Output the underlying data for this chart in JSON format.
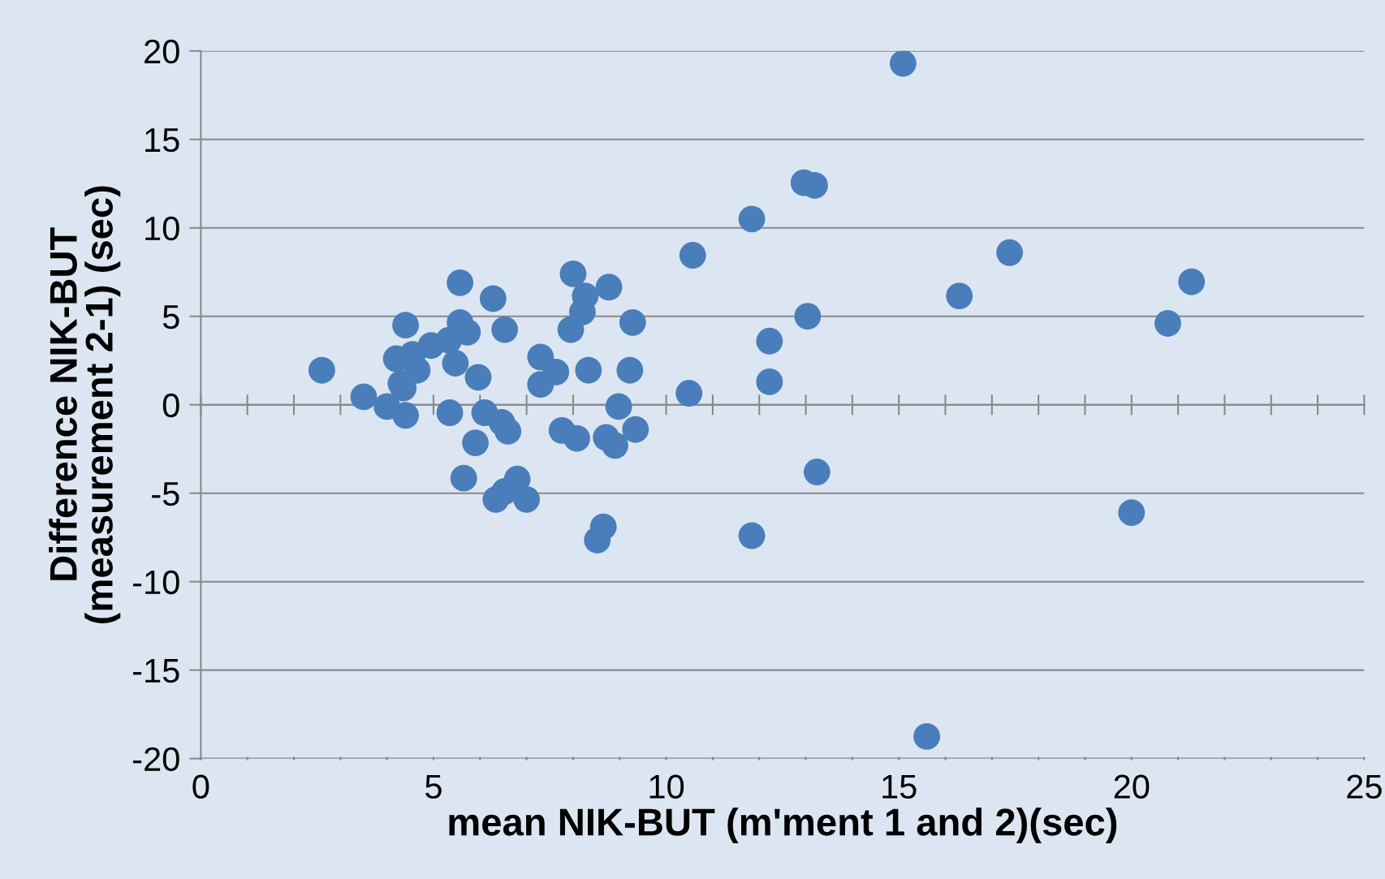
{
  "chart_data": {
    "type": "scatter",
    "xlabel": "mean NIK-BUT (m'ment 1 and 2)(sec)",
    "ylabel": "Difference NIK-BUT\n(measurement 2-1) (sec)",
    "x": [
      2.6,
      3.5,
      4.0,
      4.2,
      4.4,
      4.3,
      4.35,
      4.4,
      4.55,
      4.65,
      4.95,
      5.33,
      5.47,
      5.35,
      5.57,
      5.57,
      5.73,
      5.65,
      5.96,
      5.9,
      6.1,
      6.28,
      6.34,
      6.53,
      6.47,
      6.6,
      6.53,
      6.8,
      7.0,
      7.3,
      7.3,
      7.63,
      7.76,
      7.95,
      8.0,
      8.08,
      8.2,
      8.26,
      8.33,
      8.52,
      8.65,
      8.71,
      8.77,
      8.9,
      8.98,
      9.22,
      9.28,
      9.34,
      10.49,
      10.57,
      11.84,
      11.84,
      12.22,
      12.22,
      12.96,
      13.19,
      13.04,
      13.24,
      15.09,
      15.6,
      16.3,
      17.38,
      20.0,
      20.78,
      21.29
    ],
    "series": [
      {
        "color": "#4a7ebb",
        "values": [
          1.95,
          0.45,
          -0.1,
          2.6,
          4.5,
          1.2,
          0.95,
          -0.6,
          2.85,
          1.95,
          3.35,
          3.65,
          2.35,
          -0.45,
          6.9,
          4.65,
          4.1,
          -4.15,
          1.55,
          -2.15,
          -0.45,
          6.0,
          -5.35,
          4.25,
          -1.0,
          -1.5,
          -4.9,
          -4.2,
          -5.35,
          2.7,
          1.15,
          1.85,
          -1.45,
          4.25,
          7.4,
          -1.9,
          5.25,
          6.15,
          1.95,
          -7.65,
          -6.9,
          -1.85,
          6.65,
          -2.3,
          -0.1,
          1.95,
          4.65,
          -1.4,
          0.65,
          8.45,
          10.5,
          -7.4,
          3.6,
          1.3,
          12.55,
          12.4,
          5.0,
          -3.8,
          19.3,
          -18.75,
          6.15,
          8.6,
          -6.1,
          4.6,
          6.95
        ]
      }
    ],
    "xlim": [
      0,
      25
    ],
    "xticks": [
      0,
      {
        "value": 1,
        "label": null
      },
      {
        "value": 2,
        "label": null
      },
      {
        "value": 3,
        "label": null
      },
      {
        "value": 4,
        "label": null
      },
      5,
      {
        "value": 6,
        "label": null
      },
      {
        "value": 7,
        "label": null
      },
      {
        "value": 8,
        "label": null
      },
      {
        "value": 9,
        "label": null
      },
      10,
      {
        "value": 11,
        "label": null
      },
      {
        "value": 12,
        "label": null
      },
      {
        "value": 13,
        "label": null
      },
      {
        "value": 14,
        "label": null
      },
      15,
      {
        "value": 16,
        "label": null
      },
      {
        "value": 17,
        "label": null
      },
      {
        "value": 18,
        "label": null
      },
      {
        "value": 19,
        "label": null
      },
      20,
      {
        "value": 21,
        "label": null
      },
      {
        "value": 22,
        "label": null
      },
      {
        "value": 23,
        "label": null
      },
      {
        "value": 24,
        "label": null
      },
      25
    ],
    "ylim": [
      -20,
      20
    ],
    "yticks": [
      -20,
      -15,
      -10,
      -5,
      0,
      5,
      10,
      15,
      20
    ],
    "grid": "y",
    "marker": "circle"
  }
}
